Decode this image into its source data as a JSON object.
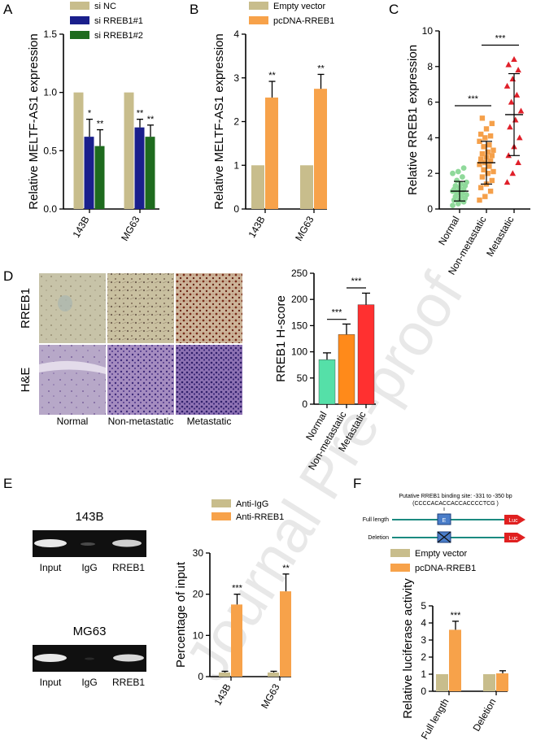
{
  "watermark": "Journal Pre-proof",
  "colors": {
    "nc": "#c8bd8c",
    "si1": "#1a1f8c",
    "si2": "#1e6b1e",
    "empty": "#c8bd8c",
    "pcdna": "#f7a24a",
    "normal": "#8fd99a",
    "nonmet": "#f5a04a",
    "met": "#e0202a",
    "hnormal": "#55e0a8",
    "hnonmet": "#ff8a1a",
    "hmet": "#ff3030",
    "antiigg": "#c8bd8c",
    "antirreb1": "#f7a24a"
  },
  "panels": {
    "A": {
      "letter": "A",
      "chart_data": {
        "type": "bar",
        "ylabel": "Relative MELTF-AS1 expression",
        "categories": [
          "143B",
          "MG63"
        ],
        "ylim": [
          0,
          1.5
        ],
        "yticks": [
          "0.0",
          "0.5",
          "1.0",
          "1.5"
        ],
        "series": [
          {
            "name": "si NC",
            "values": [
              1.0,
              1.0
            ],
            "errors": [
              0,
              0
            ]
          },
          {
            "name": "si RREB1#1",
            "values": [
              0.62,
              0.7
            ],
            "errors": [
              0.15,
              0.07
            ]
          },
          {
            "name": "si RREB1#2",
            "values": [
              0.54,
              0.62
            ],
            "errors": [
              0.14,
              0.1
            ]
          }
        ],
        "annotations": [
          [
            "",
            "*",
            "**"
          ],
          [
            "",
            "**",
            "**"
          ]
        ]
      }
    },
    "B": {
      "letter": "B",
      "chart_data": {
        "type": "bar",
        "ylabel": "Relative MELTF-AS1 expression",
        "categories": [
          "143B",
          "MG63"
        ],
        "ylim": [
          0,
          4
        ],
        "yticks": [
          "0",
          "1",
          "2",
          "3",
          "4"
        ],
        "series": [
          {
            "name": "Empty vector",
            "values": [
              1.0,
              1.0
            ],
            "errors": [
              0,
              0
            ]
          },
          {
            "name": "pcDNA-RREB1",
            "values": [
              2.55,
              2.75
            ],
            "errors": [
              0.37,
              0.33
            ]
          }
        ],
        "annotations": [
          [
            "",
            "**"
          ],
          [
            "",
            "**"
          ]
        ]
      }
    },
    "C": {
      "letter": "C",
      "chart_data": {
        "type": "scatter",
        "ylabel": "Relative RREB1 expression",
        "categories": [
          "Normal",
          "Non-metastatic",
          "Metastatic"
        ],
        "ylim": [
          0,
          10
        ],
        "yticks": [
          "0",
          "2",
          "4",
          "6",
          "8",
          "10"
        ],
        "groups": [
          {
            "name": "Normal",
            "mean": 1.0,
            "sd": 0.55,
            "values": [
              0.2,
              0.3,
              0.4,
              0.5,
              0.5,
              0.6,
              0.7,
              0.7,
              0.8,
              0.9,
              0.9,
              1.0,
              1.0,
              1.1,
              1.1,
              1.2,
              1.3,
              1.3,
              1.4,
              1.5,
              1.6,
              1.8,
              2.0,
              2.1,
              2.3
            ]
          },
          {
            "name": "Non-metastatic",
            "mean": 2.6,
            "sd": 1.2,
            "values": [
              0.5,
              0.7,
              1.0,
              1.2,
              1.4,
              1.6,
              1.8,
              2.0,
              2.1,
              2.2,
              2.4,
              2.5,
              2.6,
              2.7,
              2.8,
              2.9,
              3.0,
              3.1,
              3.2,
              3.3,
              3.5,
              3.6,
              3.8,
              4.0,
              4.1,
              4.2,
              4.5,
              4.8,
              5.1
            ]
          },
          {
            "name": "Metastatic",
            "mean": 5.3,
            "sd": 2.3,
            "values": [
              1.5,
              2.0,
              2.6,
              3.0,
              3.5,
              4.0,
              4.6,
              5.0,
              5.5,
              6.0,
              6.4,
              6.9,
              7.3,
              7.8,
              8.1,
              8.4
            ]
          }
        ],
        "comparisons": [
          "***",
          "***"
        ]
      }
    },
    "D": {
      "letter": "D",
      "row_labels": [
        "RREB1",
        "H&E"
      ],
      "col_labels": [
        "Normal",
        "Non-metastatic",
        "Metastatic"
      ],
      "chart_data": {
        "type": "bar",
        "ylabel": "RREB1 H-score",
        "categories": [
          "Normal",
          "Non-metastatic",
          "Metastatic"
        ],
        "ylim": [
          0,
          250
        ],
        "yticks": [
          "0",
          "50",
          "100",
          "150",
          "200",
          "250"
        ],
        "values": [
          85,
          133,
          190
        ],
        "errors": [
          13,
          20,
          22
        ],
        "comparisons": [
          "***",
          "***"
        ]
      }
    },
    "E": {
      "letter": "E",
      "gel_titles": [
        "143B",
        "MG63"
      ],
      "lane_labels": [
        "Input",
        "IgG",
        "RREB1"
      ],
      "chart_data": {
        "type": "bar",
        "ylabel": "Percentage of input",
        "categories": [
          "143B",
          "MG63"
        ],
        "ylim": [
          0,
          30
        ],
        "yticks": [
          "0",
          "10",
          "20",
          "30"
        ],
        "series": [
          {
            "name": "Anti-IgG",
            "values": [
              1.0,
              1.0
            ],
            "errors": [
              0.3,
              0.3
            ]
          },
          {
            "name": "Anti-RREB1",
            "values": [
              17.5,
              20.7
            ],
            "errors": [
              2.5,
              4.2
            ]
          }
        ],
        "annotations": [
          [
            "",
            "***"
          ],
          [
            "",
            "**"
          ]
        ]
      }
    },
    "F": {
      "letter": "F",
      "site_title": "Putative RREB1 binding site: -331 to -350 bp",
      "site_seq": "(CCCCACACCACCACCCCTCG )",
      "constructs": [
        "Full length",
        "Deletion"
      ],
      "box_label": "E",
      "luc_label": "Luc",
      "chart_data": {
        "type": "bar",
        "ylabel": "Relative luciferase activity",
        "categories": [
          "Full length",
          "Deletion"
        ],
        "ylim": [
          0,
          5
        ],
        "yticks": [
          "0",
          "1",
          "2",
          "3",
          "4",
          "5"
        ],
        "series": [
          {
            "name": "Empty vector",
            "values": [
              1.0,
              1.0
            ],
            "errors": [
              0,
              0
            ]
          },
          {
            "name": "pcDNA-RREB1",
            "values": [
              3.6,
              1.05
            ],
            "errors": [
              0.5,
              0.15
            ]
          }
        ],
        "annotations": [
          [
            "",
            "***"
          ],
          [
            "",
            ""
          ]
        ]
      }
    }
  }
}
